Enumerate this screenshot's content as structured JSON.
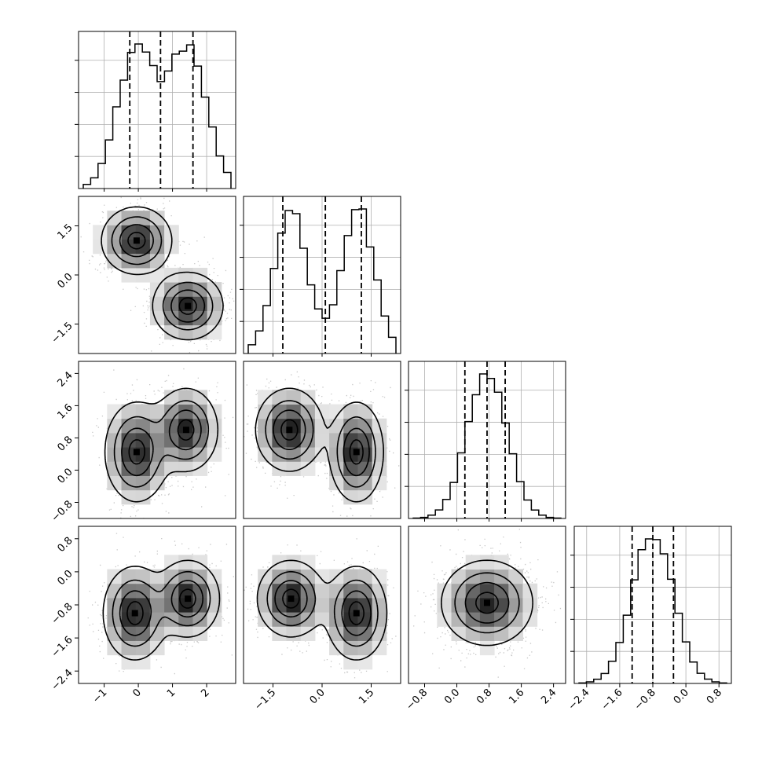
{
  "chart_data": {
    "type": "corner",
    "grid": true,
    "colors": {
      "hist": "#000000",
      "quantile": "#000000",
      "contour": "#000000",
      "points": "#9a9a9a",
      "grid": "#b0b0b0"
    },
    "dims": [
      {
        "range": [
          -1.75,
          2.85
        ],
        "ticks": [
          -1,
          0,
          1,
          2
        ],
        "tick_labels": [
          "−1",
          "0",
          "1",
          "2"
        ],
        "quantiles": [
          -0.25,
          0.65,
          1.6
        ],
        "modes": [
          [
            -0.05,
            0.55,
            0.5
          ],
          [
            1.45,
            0.55,
            0.5
          ]
        ]
      },
      {
        "range": [
          -2.4,
          2.4
        ],
        "ticks": [
          -1.5,
          0.0,
          1.5
        ],
        "tick_labels": [
          "−1.5",
          "0.0",
          "1.5"
        ],
        "quantiles": [
          -1.2,
          0.1,
          1.2
        ],
        "modes": [
          [
            -0.95,
            0.5,
            0.5
          ],
          [
            1.1,
            0.5,
            0.5
          ]
        ]
      },
      {
        "range": [
          -1.2,
          2.7
        ],
        "ticks": [
          -0.8,
          0.0,
          0.8,
          1.6,
          2.4
        ],
        "tick_labels": [
          "−0.8",
          "0.0",
          "0.8",
          "1.6",
          "2.4"
        ],
        "quantiles": [
          0.2,
          0.75,
          1.2
        ],
        "modes": [
          [
            0.75,
            0.5,
            1.0
          ]
        ]
      },
      {
        "range": [
          -2.7,
          1.1
        ],
        "ticks": [
          -2.4,
          -1.6,
          -0.8,
          0.0,
          0.8
        ],
        "tick_labels": [
          "−2.4",
          "−1.6",
          "−0.8",
          "0.0",
          "0.8"
        ],
        "quantiles": [
          -1.3,
          -0.8,
          -0.3
        ],
        "modes": [
          [
            -0.8,
            0.5,
            1.0
          ]
        ]
      }
    ],
    "blobs": [
      {
        "cx": -0.05,
        "cy": 1.05,
        "sx": 0.5,
        "sy": 0.5,
        "w": 1
      },
      {
        "cx": 1.45,
        "cy": -0.95,
        "sx": 0.5,
        "sy": 0.5,
        "w": 1
      }
    ],
    "pair_blobs": {
      "2-0": [
        {
          "cx": -0.05,
          "cy": 0.45,
          "sx": 0.45,
          "sy": 0.6,
          "w": 1
        },
        {
          "cx": 1.4,
          "cy": 1.0,
          "sx": 0.45,
          "sy": 0.5,
          "w": 1
        }
      ],
      "2-1": [
        {
          "cx": -1.0,
          "cy": 1.0,
          "sx": 0.5,
          "sy": 0.5,
          "w": 1
        },
        {
          "cx": 1.05,
          "cy": 0.45,
          "sx": 0.4,
          "sy": 0.6,
          "w": 1
        }
      ],
      "3-0": [
        {
          "cx": -0.1,
          "cy": -1.0,
          "sx": 0.45,
          "sy": 0.55,
          "w": 1
        },
        {
          "cx": 1.45,
          "cy": -0.65,
          "sx": 0.45,
          "sy": 0.45,
          "w": 1
        }
      ],
      "3-1": [
        {
          "cx": -0.95,
          "cy": -0.65,
          "sx": 0.5,
          "sy": 0.45,
          "w": 1
        },
        {
          "cx": 1.05,
          "cy": -1.0,
          "sx": 0.45,
          "sy": 0.55,
          "w": 1
        }
      ],
      "3-2": [
        {
          "cx": 0.75,
          "cy": -0.75,
          "sx": 0.55,
          "sy": 0.5,
          "w": 1
        }
      ]
    }
  }
}
